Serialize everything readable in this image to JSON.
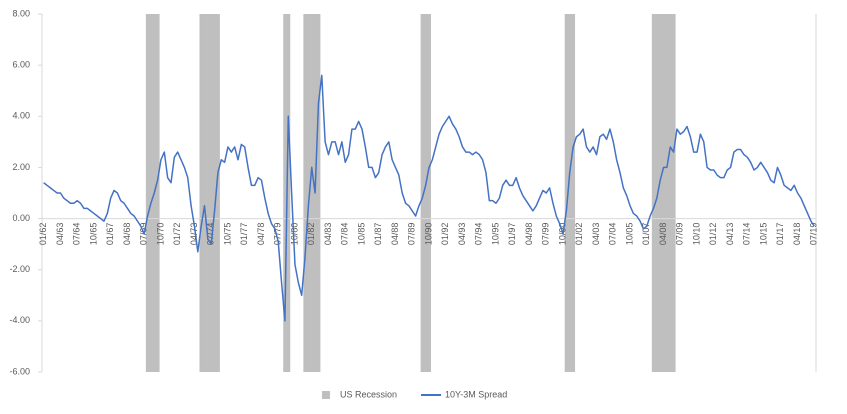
{
  "chart_data": {
    "type": "line",
    "ylim": [
      -6,
      8
    ],
    "yticks": [
      {
        "value": -6,
        "label": "-6.00"
      },
      {
        "value": -4,
        "label": "-4.00"
      },
      {
        "value": -2,
        "label": "-2.00"
      },
      {
        "value": 0,
        "label": "0.00"
      },
      {
        "value": 2,
        "label": "2.00"
      },
      {
        "value": 4,
        "label": "4.00"
      },
      {
        "value": 6,
        "label": "6.00"
      },
      {
        "value": 8,
        "label": "8.00"
      }
    ],
    "y2lim": [
      0,
      1
    ],
    "legend": "bottom",
    "categories": [
      "01/62",
      null,
      null,
      null,
      null,
      "04/63",
      null,
      null,
      null,
      null,
      "07/64",
      null,
      null,
      null,
      null,
      "10/65",
      null,
      null,
      null,
      null,
      "01/67",
      null,
      null,
      null,
      null,
      "04/68",
      null,
      null,
      null,
      null,
      "07/69",
      null,
      null,
      null,
      null,
      "10/70",
      null,
      null,
      null,
      null,
      "01/72",
      null,
      null,
      null,
      null,
      "04/73",
      null,
      null,
      null,
      null,
      "07/74",
      null,
      null,
      null,
      null,
      "10/75",
      null,
      null,
      null,
      null,
      "01/77",
      null,
      null,
      null,
      null,
      "04/78",
      null,
      null,
      null,
      null,
      "07/79",
      null,
      null,
      null,
      null,
      "10/80",
      null,
      null,
      null,
      null,
      "01/82",
      null,
      null,
      null,
      null,
      "04/83",
      null,
      null,
      null,
      null,
      "07/84",
      null,
      null,
      null,
      null,
      "10/85",
      null,
      null,
      null,
      null,
      "01/87",
      null,
      null,
      null,
      null,
      "04/88",
      null,
      null,
      null,
      null,
      "07/89",
      null,
      null,
      null,
      null,
      "10/90",
      null,
      null,
      null,
      null,
      "01/92",
      null,
      null,
      null,
      null,
      "04/93",
      null,
      null,
      null,
      null,
      "07/94",
      null,
      null,
      null,
      null,
      "10/95",
      null,
      null,
      null,
      null,
      "01/97",
      null,
      null,
      null,
      null,
      "04/98",
      null,
      null,
      null,
      null,
      "07/99",
      null,
      null,
      null,
      null,
      "10/00",
      null,
      null,
      null,
      null,
      "01/02",
      null,
      null,
      null,
      null,
      "04/03",
      null,
      null,
      null,
      null,
      "07/04",
      null,
      null,
      null,
      null,
      "10/05",
      null,
      null,
      null,
      null,
      "01/07",
      null,
      null,
      null,
      null,
      "04/08",
      null,
      null,
      null,
      null,
      "07/09",
      null,
      null,
      null,
      null,
      "10/10",
      null,
      null,
      null,
      null,
      "01/12",
      null,
      null,
      null,
      null,
      "04/13",
      null,
      null,
      null,
      null,
      "07/14",
      null,
      null,
      null,
      null,
      "10/15",
      null,
      null,
      null,
      null,
      "01/17",
      null,
      null,
      null,
      null,
      "04/18",
      null,
      null,
      null,
      null,
      "07/19"
    ],
    "series": [
      {
        "name": "US Recession",
        "type": "bar",
        "axis": "y2",
        "color": "#bfbfbf",
        "values": [
          0,
          0,
          0,
          0,
          0,
          0,
          0,
          0,
          0,
          0,
          0,
          0,
          0,
          0,
          0,
          0,
          0,
          0,
          0,
          0,
          0,
          0,
          0,
          0,
          0,
          0,
          0,
          0,
          0,
          0,
          0,
          1,
          1,
          1,
          1,
          0,
          0,
          0,
          0,
          0,
          0,
          0,
          0,
          0,
          0,
          0,
          0,
          1,
          1,
          1,
          1,
          1,
          1,
          0,
          0,
          0,
          0,
          0,
          0,
          0,
          0,
          0,
          0,
          0,
          0,
          0,
          0,
          0,
          0,
          0,
          0,
          0,
          1,
          1,
          0,
          0,
          0,
          0,
          1,
          1,
          1,
          1,
          1,
          0,
          0,
          0,
          0,
          0,
          0,
          0,
          0,
          0,
          0,
          0,
          0,
          0,
          0,
          0,
          0,
          0,
          0,
          0,
          0,
          0,
          0,
          0,
          0,
          0,
          0,
          0,
          0,
          0,
          0,
          1,
          1,
          1,
          0,
          0,
          0,
          0,
          0,
          0,
          0,
          0,
          0,
          0,
          0,
          0,
          0,
          0,
          0,
          0,
          0,
          0,
          0,
          0,
          0,
          0,
          0,
          0,
          0,
          0,
          0,
          0,
          0,
          0,
          0,
          0,
          0,
          0,
          0,
          0,
          0,
          0,
          0,
          0,
          1,
          1,
          1,
          0,
          0,
          0,
          0,
          0,
          0,
          0,
          0,
          0,
          0,
          0,
          0,
          0,
          0,
          0,
          0,
          0,
          0,
          0,
          0,
          0,
          0,
          0,
          1,
          1,
          1,
          1,
          1,
          1,
          1,
          0,
          0,
          0,
          0,
          0,
          0,
          0,
          0,
          0,
          0,
          0,
          0,
          0,
          0,
          0,
          0,
          0,
          0,
          0,
          0,
          0,
          0,
          0,
          0,
          0,
          0,
          0,
          0,
          0,
          0,
          0,
          0,
          0,
          0,
          0,
          0,
          0,
          0,
          0,
          0,
          0,
          0
        ]
      },
      {
        "name": "10Y-3M Spread",
        "type": "line",
        "color": "#4472c4",
        "values": [
          1.4,
          1.3,
          1.2,
          1.1,
          1.0,
          1.0,
          0.8,
          0.7,
          0.6,
          0.6,
          0.7,
          0.6,
          0.4,
          0.4,
          0.3,
          0.2,
          0.1,
          0.0,
          -0.1,
          0.2,
          0.8,
          1.1,
          1.0,
          0.7,
          0.6,
          0.4,
          0.2,
          0.1,
          -0.1,
          -0.3,
          -0.6,
          0.1,
          0.6,
          1.0,
          1.5,
          2.3,
          2.6,
          1.6,
          1.4,
          2.4,
          2.6,
          2.3,
          2.0,
          1.6,
          0.5,
          -0.3,
          -1.3,
          -0.3,
          0.5,
          -0.8,
          -1.0,
          0.3,
          1.8,
          2.3,
          2.2,
          2.8,
          2.6,
          2.8,
          2.3,
          2.9,
          2.8,
          2.0,
          1.3,
          1.3,
          1.6,
          1.5,
          0.8,
          0.2,
          -0.2,
          -0.4,
          -0.9,
          -2.5,
          -4.0,
          4.0,
          1.0,
          -1.8,
          -2.5,
          -3.0,
          -1.5,
          0.5,
          2.0,
          1.0,
          4.5,
          5.6,
          3.0,
          2.5,
          3.0,
          3.0,
          2.5,
          3.0,
          2.2,
          2.5,
          3.5,
          3.5,
          3.8,
          3.5,
          2.8,
          2.0,
          2.0,
          1.6,
          1.8,
          2.5,
          2.8,
          3.0,
          2.3,
          2.0,
          1.7,
          1.0,
          0.6,
          0.5,
          0.3,
          0.1,
          0.5,
          0.8,
          1.3,
          2.0,
          2.3,
          2.8,
          3.3,
          3.6,
          3.8,
          4.0,
          3.7,
          3.5,
          3.2,
          2.8,
          2.6,
          2.6,
          2.5,
          2.6,
          2.5,
          2.3,
          1.8,
          0.7,
          0.7,
          0.6,
          0.8,
          1.3,
          1.5,
          1.3,
          1.3,
          1.6,
          1.2,
          0.9,
          0.7,
          0.5,
          0.3,
          0.5,
          0.8,
          1.1,
          1.0,
          1.2,
          0.6,
          0.1,
          -0.2,
          -0.6,
          0.3,
          1.8,
          2.8,
          3.2,
          3.3,
          3.5,
          2.8,
          2.6,
          2.8,
          2.5,
          3.2,
          3.3,
          3.1,
          3.5,
          3.0,
          2.3,
          1.8,
          1.2,
          0.9,
          0.5,
          0.2,
          0.1,
          -0.1,
          -0.4,
          -0.3,
          0.1,
          0.4,
          0.8,
          1.5,
          2.0,
          2.0,
          2.8,
          2.6,
          3.5,
          3.3,
          3.4,
          3.6,
          3.2,
          2.6,
          2.6,
          3.3,
          3.0,
          2.0,
          1.9,
          1.9,
          1.7,
          1.6,
          1.6,
          1.9,
          2.0,
          2.6,
          2.7,
          2.7,
          2.5,
          2.4,
          2.2,
          1.9,
          2.0,
          2.2,
          2.0,
          1.8,
          1.5,
          1.4,
          2.0,
          1.7,
          1.3,
          1.2,
          1.1,
          1.3,
          1.0,
          0.8,
          0.5,
          0.2,
          -0.1,
          -0.3
        ]
      }
    ]
  }
}
